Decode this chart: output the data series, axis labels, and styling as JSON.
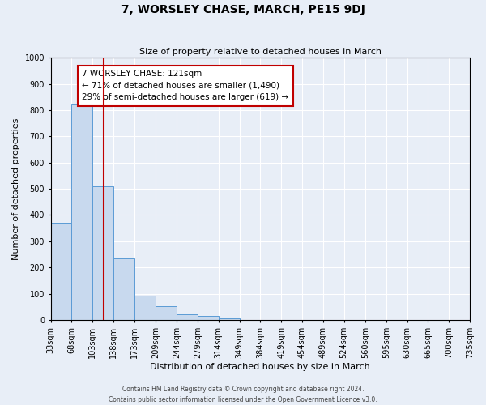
{
  "title": "7, WORSLEY CHASE, MARCH, PE15 9DJ",
  "subtitle": "Size of property relative to detached houses in March",
  "xlabel": "Distribution of detached houses by size in March",
  "ylabel": "Number of detached properties",
  "bar_lefts": [
    33,
    68,
    103,
    138,
    173,
    209,
    244,
    279,
    314,
    349,
    384,
    419,
    454,
    489,
    524,
    560,
    595,
    630,
    665,
    700
  ],
  "bar_rights": [
    68,
    103,
    138,
    173,
    209,
    244,
    279,
    314,
    349,
    384,
    419,
    454,
    489,
    524,
    560,
    595,
    630,
    665,
    700,
    735
  ],
  "bar_heights": [
    370,
    820,
    510,
    235,
    92,
    52,
    22,
    14,
    7,
    0,
    0,
    0,
    0,
    0,
    0,
    0,
    0,
    0,
    0,
    0
  ],
  "bar_color": "#c8d9ee",
  "bar_edge_color": "#5b9bd5",
  "property_line_x": 121,
  "property_line_color": "#c00000",
  "annotation_line1": "7 WORSLEY CHASE: 121sqm",
  "annotation_line2": "← 71% of detached houses are smaller (1,490)",
  "annotation_line3": "29% of semi-detached houses are larger (619) →",
  "annotation_fontsize": 7.5,
  "ylim": [
    0,
    1000
  ],
  "xlim": [
    33,
    735
  ],
  "tick_positions": [
    33,
    68,
    103,
    138,
    173,
    209,
    244,
    279,
    314,
    349,
    384,
    419,
    454,
    489,
    524,
    560,
    595,
    630,
    665,
    700,
    735
  ],
  "tick_labels": [
    "33sqm",
    "68sqm",
    "103sqm",
    "138sqm",
    "173sqm",
    "209sqm",
    "244sqm",
    "279sqm",
    "314sqm",
    "349sqm",
    "384sqm",
    "419sqm",
    "454sqm",
    "489sqm",
    "524sqm",
    "560sqm",
    "595sqm",
    "630sqm",
    "665sqm",
    "700sqm",
    "735sqm"
  ],
  "background_color": "#e8eef7",
  "plot_bg_color": "#e8eef7",
  "grid_color": "#ffffff",
  "footer_line1": "Contains HM Land Registry data © Crown copyright and database right 2024.",
  "footer_line2": "Contains public sector information licensed under the Open Government Licence v3.0.",
  "title_fontsize": 10,
  "subtitle_fontsize": 8,
  "ylabel_fontsize": 8,
  "xlabel_fontsize": 8,
  "ytick_fontsize": 7,
  "xtick_fontsize": 7
}
